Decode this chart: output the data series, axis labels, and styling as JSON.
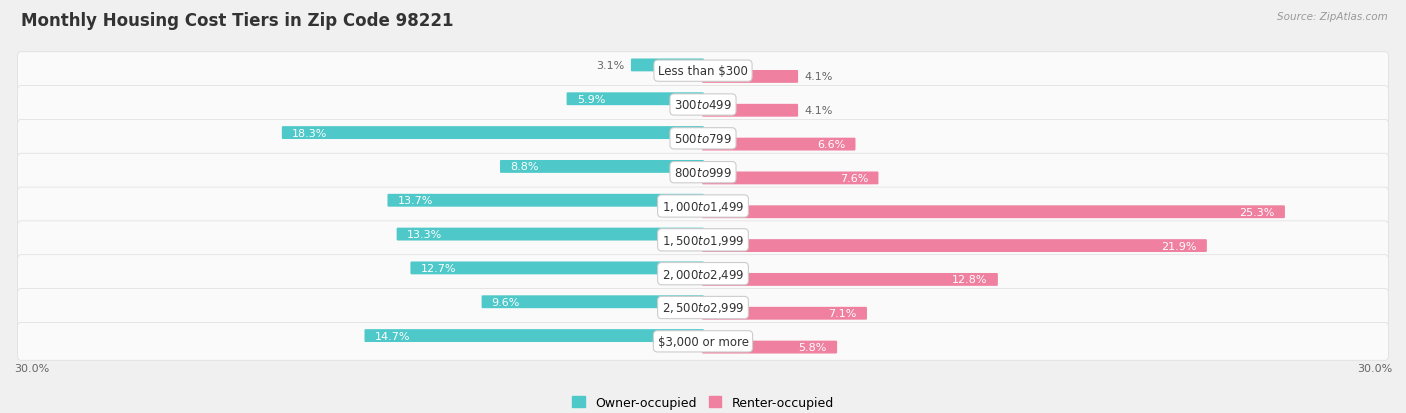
{
  "title": "Monthly Housing Cost Tiers in Zip Code 98221",
  "source": "Source: ZipAtlas.com",
  "categories": [
    "Less than $300",
    "$300 to $499",
    "$500 to $799",
    "$800 to $999",
    "$1,000 to $1,499",
    "$1,500 to $1,999",
    "$2,000 to $2,499",
    "$2,500 to $2,999",
    "$3,000 or more"
  ],
  "owner_values": [
    3.1,
    5.9,
    18.3,
    8.8,
    13.7,
    13.3,
    12.7,
    9.6,
    14.7
  ],
  "renter_values": [
    4.1,
    4.1,
    6.6,
    7.6,
    25.3,
    21.9,
    12.8,
    7.1,
    5.8
  ],
  "owner_color": "#4EC8C8",
  "renter_color": "#F080A0",
  "owner_label": "Owner-occupied",
  "renter_label": "Renter-occupied",
  "axis_max": 30.0,
  "background_color": "#f0f0f0",
  "row_bg_color": "#fafafa",
  "label_inside_color": "#ffffff",
  "label_outside_color": "#666666",
  "title_fontsize": 12,
  "category_fontsize": 8.5,
  "value_fontsize": 8,
  "inside_threshold": 5.0
}
